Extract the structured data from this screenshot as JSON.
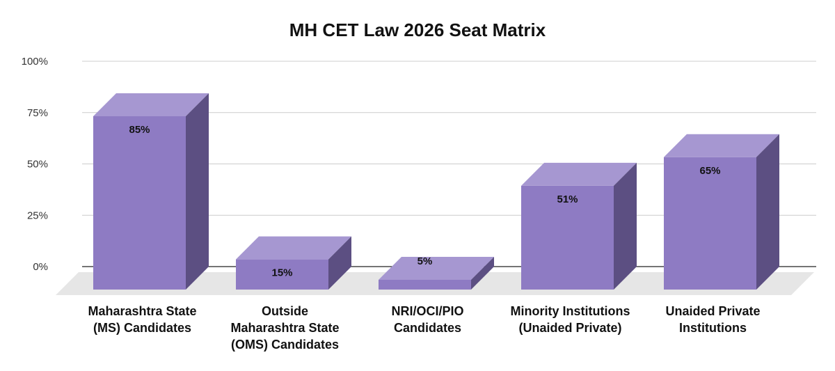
{
  "chart_data": {
    "type": "bar",
    "title": "MH CET Law 2026 Seat Matrix",
    "xlabel": "",
    "ylabel": "",
    "categories": [
      [
        "Maharashtra State",
        "(MS) Candidates"
      ],
      [
        "Outside",
        "Maharashtra State",
        "(OMS) Candidates"
      ],
      [
        "NRI/OCI/PIO",
        "Candidates"
      ],
      [
        "Minority Institutions",
        "(Unaided Private)"
      ],
      [
        "Unaided Private",
        "Institutions"
      ]
    ],
    "values": [
      85,
      15,
      5,
      51,
      65
    ],
    "data_labels": [
      "85%",
      "15%",
      "5%",
      "51%",
      "65%"
    ],
    "y_ticks": [
      0,
      25,
      50,
      75,
      100
    ],
    "y_tick_labels": [
      "0%",
      "25%",
      "50%",
      "75%",
      "100%"
    ],
    "ylim": [
      0,
      100
    ],
    "grid": true,
    "legend": "none",
    "style": "3d-bar"
  },
  "colors": {
    "bar_front": "#8e7bc3",
    "bar_top": "#a697d1",
    "bar_side": "#5c4f82",
    "floor": "#e6e6e6",
    "grid": "#cccccc",
    "baseline": "#222222"
  }
}
